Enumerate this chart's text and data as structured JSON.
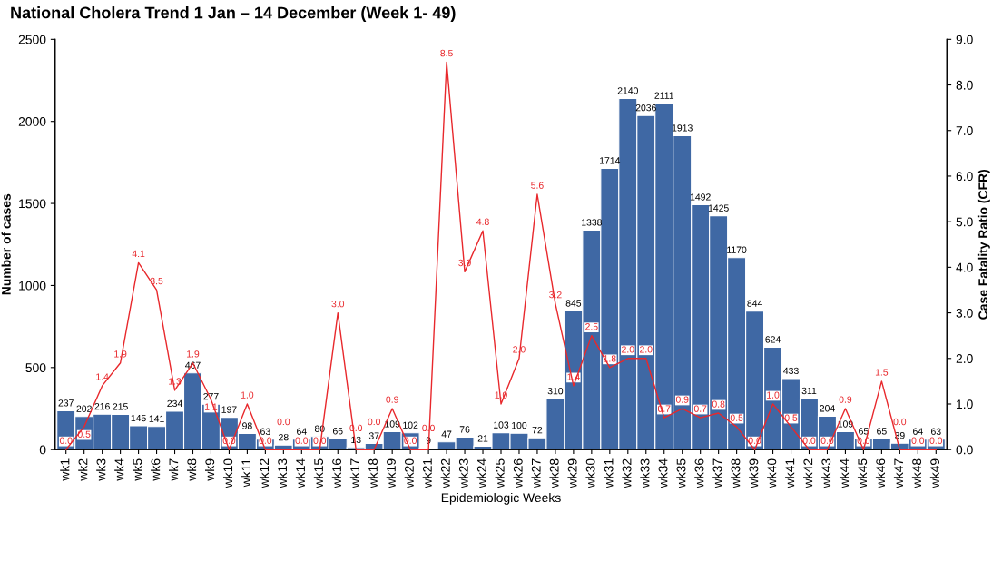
{
  "chart_data": {
    "type": "bar",
    "title": "National Cholera Trend 1 Jan – 14 December (Week 1- 49)",
    "xlabel": "Epidemiologic Weeks",
    "ylabel": "Number of cases",
    "y2label": "Case Fatality Ratio (CFR)",
    "categories": [
      "wk1",
      "wk2",
      "wk3",
      "wk4",
      "wk5",
      "wk6",
      "wk7",
      "wk8",
      "wk9",
      "wk10",
      "wk11",
      "wk12",
      "wk13",
      "wk14",
      "wk15",
      "wk16",
      "wk17",
      "wk18",
      "wk19",
      "wk20",
      "wk21",
      "wk22",
      "wk23",
      "wk24",
      "wk25",
      "wk26",
      "wk27",
      "wk28",
      "wk29",
      "wk30",
      "wk31",
      "wk32",
      "wk33",
      "wk34",
      "wk35",
      "wk36",
      "wk37",
      "wk38",
      "wk39",
      "wk40",
      "wk41",
      "wk42",
      "wk43",
      "wk44",
      "wk45",
      "wk46",
      "wk47",
      "wk48",
      "wk49"
    ],
    "series": [
      {
        "color": "#3f68a4",
        "values": [
          237,
          202,
          216,
          215,
          145,
          141,
          234,
          467,
          277,
          197,
          98,
          63,
          28,
          64,
          80,
          66,
          13,
          37,
          109,
          102,
          9,
          47,
          76,
          21,
          103,
          100,
          72,
          310,
          845,
          1338,
          1714,
          2140,
          2036,
          2111,
          1913,
          1492,
          1425,
          1170,
          844,
          624,
          433,
          311,
          204,
          109,
          65,
          65,
          39,
          64,
          63
        ]
      },
      {
        "type": "line",
        "axis": "y2",
        "color": "#e8282c",
        "values": [
          0.0,
          0.5,
          1.4,
          1.9,
          4.1,
          3.5,
          1.3,
          1.9,
          1.1,
          0.0,
          1.0,
          0.0,
          0.0,
          0.0,
          0.0,
          3.0,
          0.0,
          0.0,
          0.9,
          0.0,
          0.0,
          8.5,
          3.9,
          4.8,
          1.0,
          2.0,
          5.6,
          3.2,
          1.4,
          2.5,
          1.8,
          2.0,
          2.0,
          0.7,
          0.9,
          0.7,
          0.8,
          0.5,
          0.0,
          1.0,
          0.5,
          0.0,
          0.0,
          0.9,
          0.0,
          1.5,
          0.0,
          0.0,
          0.0
        ],
        "value_labels": [
          "0.0",
          "0.5",
          "1.4",
          "1.9",
          "4.1",
          "3.5",
          "1.3",
          "1.9",
          "1.1",
          "0.0",
          "1.0",
          "0.0",
          "0.0",
          "0.0",
          "0.0",
          "3.0",
          "0.0",
          "0.0",
          "0.9",
          "0.0",
          "0.0",
          "8.5",
          "3.9",
          "4.8",
          "1.0",
          "2.0",
          "5.6",
          "3.2",
          "1.4",
          "2.5",
          "1.8",
          "2.0",
          "2.0",
          "0.7",
          "0.9",
          "0.7",
          "0.8",
          "0.5",
          "0.0",
          "1.0",
          "0.5",
          "0.0",
          "0.0",
          "0.9",
          "0.0",
          "1.5",
          "0.0",
          "0.0",
          "0.0"
        ]
      }
    ],
    "ylim": [
      0,
      2500
    ],
    "yticks": [
      0,
      500,
      1000,
      1500,
      2000,
      2500
    ],
    "y2lim": [
      0,
      9
    ],
    "y2ticks": [
      {
        "value": 0,
        "label": "0.0"
      },
      {
        "value": 1,
        "label": "1.0"
      },
      {
        "value": 2,
        "label": "2.0"
      },
      {
        "value": 3,
        "label": "3.0"
      },
      {
        "value": 4,
        "label": "4.0"
      },
      {
        "value": 5,
        "label": "5.0"
      },
      {
        "value": 6,
        "label": "6.0"
      },
      {
        "value": 7,
        "label": "7.0"
      },
      {
        "value": 8,
        "label": "8.0"
      },
      {
        "value": 9,
        "label": "9.0"
      }
    ],
    "data_labels": true,
    "grid": false,
    "legend": false,
    "marker": "none",
    "line_style": "solid"
  }
}
